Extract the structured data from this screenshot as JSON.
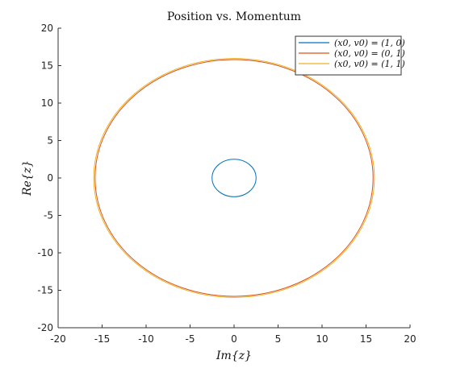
{
  "chart_data": {
    "type": "line",
    "title": "Position vs. Momentum",
    "xlabel": "Im{z}",
    "ylabel": "Re{z}",
    "xlim": [
      -20,
      20
    ],
    "ylim": [
      -20,
      20
    ],
    "xticks": [
      -20,
      -15,
      -10,
      -5,
      0,
      5,
      10,
      15,
      20
    ],
    "yticks": [
      20,
      15,
      10,
      5,
      0,
      -5,
      -10,
      -15,
      -20
    ],
    "grid": false,
    "legend_position": "top-right",
    "series": [
      {
        "name": "(x0, v0) = (1, 0)",
        "shape": "circle",
        "center": [
          0,
          0
        ],
        "radius": 2.5,
        "color": "#0072BD"
      },
      {
        "name": "(x0, v0) = (0, 1)",
        "shape": "circle",
        "center": [
          0,
          0
        ],
        "radius": 15.8,
        "color": "#D95319"
      },
      {
        "name": "(x0, v0) = (1, 1)",
        "shape": "circle",
        "center": [
          0,
          0
        ],
        "radius": 15.95,
        "color": "#EDB120"
      }
    ]
  }
}
